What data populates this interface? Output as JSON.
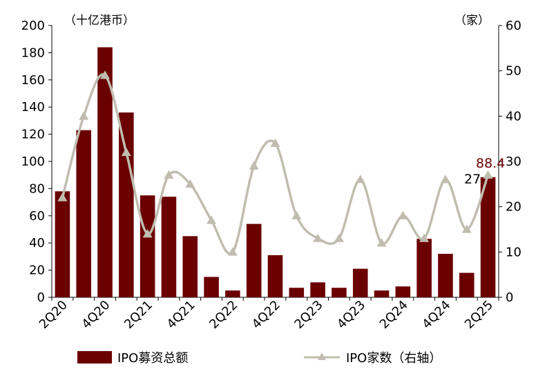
{
  "chart_data": {
    "type": "bar+line",
    "categories": [
      "2Q20",
      "3Q20",
      "4Q20",
      "1Q21",
      "2Q21",
      "3Q21",
      "4Q21",
      "1Q22",
      "2Q22",
      "3Q22",
      "4Q22",
      "1Q23",
      "2Q23",
      "3Q23",
      "4Q23",
      "1Q24",
      "2Q24",
      "3Q24",
      "4Q24",
      "1Q25",
      "2Q25"
    ],
    "x_tick_labels": [
      "2Q20",
      "4Q20",
      "2Q21",
      "4Q21",
      "2Q22",
      "4Q22",
      "2Q23",
      "4Q23",
      "2Q24",
      "4Q24",
      "2Q25"
    ],
    "series": [
      {
        "name": "IPO募资总额",
        "type": "bar",
        "axis": "left",
        "color": "#6b0000",
        "values": [
          78,
          123,
          184,
          136,
          75,
          74,
          45,
          15,
          5,
          54,
          31,
          7,
          11,
          7,
          21,
          5,
          8,
          43,
          32,
          18,
          88.4
        ]
      },
      {
        "name": "IPO家数（右轴）",
        "type": "line",
        "axis": "right",
        "color": "#c0bdb0",
        "values": [
          22,
          40,
          49,
          32,
          14,
          27,
          25,
          17,
          10,
          29,
          34,
          18,
          13,
          13,
          26,
          12,
          18,
          13,
          26,
          15,
          27
        ]
      }
    ],
    "left_axis": {
      "unit_label": "（十亿港币）",
      "min": 0,
      "max": 200,
      "ticks": [
        0,
        20,
        40,
        60,
        80,
        100,
        120,
        140,
        160,
        180,
        200
      ]
    },
    "right_axis": {
      "unit_label": "（家）",
      "min": 0,
      "max": 60,
      "ticks": [
        0,
        10,
        20,
        30,
        40,
        50,
        60
      ]
    },
    "annotations": [
      {
        "text": "88.4",
        "color": "#6b0000"
      },
      {
        "text": "27",
        "color": "#000000"
      }
    ],
    "legend": {
      "placement": "bottom"
    },
    "grid": false
  }
}
